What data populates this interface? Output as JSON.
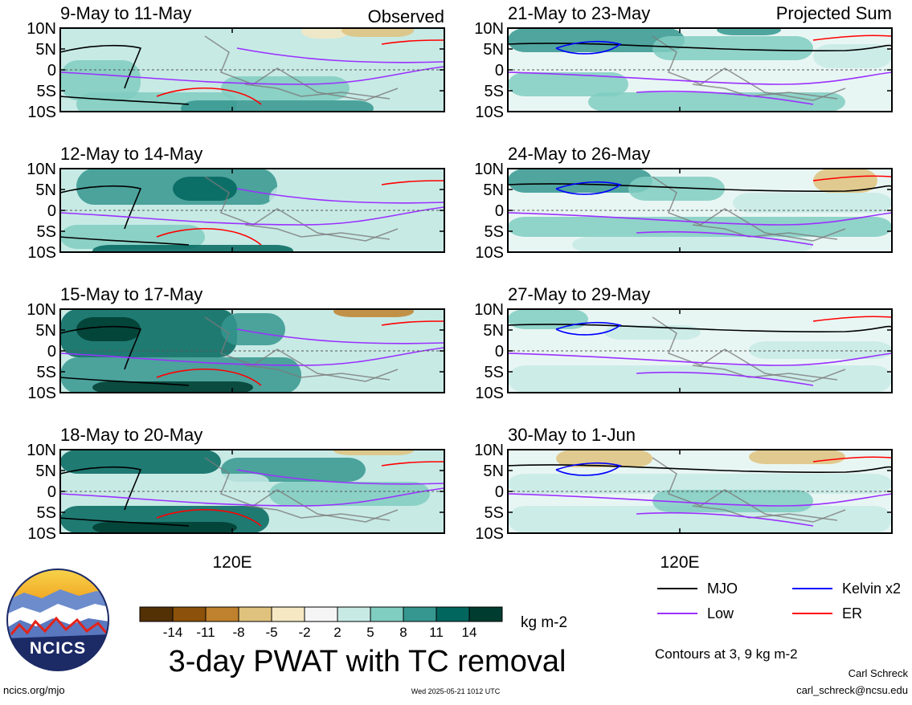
{
  "chart_data": {
    "type": "heatmap",
    "title": "3-day PWAT with TC removal",
    "units": "kg m-2",
    "contour_note": "Contours at 3, 9 kg m-2",
    "column_headers": [
      "Observed",
      "Projected Sum"
    ],
    "y_ticks": [
      "10N",
      "5N",
      "0",
      "5S",
      "10S"
    ],
    "x_ticks": [
      "120E"
    ],
    "panels": [
      {
        "period": "9-May to 11-May",
        "column": "Observed"
      },
      {
        "period": "12-May to 14-May",
        "column": "Observed"
      },
      {
        "period": "15-May to 17-May",
        "column": "Observed"
      },
      {
        "period": "18-May to 20-May",
        "column": "Observed"
      },
      {
        "period": "21-May to 23-May",
        "column": "Projected Sum"
      },
      {
        "period": "24-May to 26-May",
        "column": "Projected Sum"
      },
      {
        "period": "27-May to 29-May",
        "column": "Projected Sum"
      },
      {
        "period": "30-May to 1-Jun",
        "column": "Projected Sum"
      }
    ],
    "colorbar": {
      "labels": [
        "-14",
        "-11",
        "-8",
        "-5",
        "-2",
        "2",
        "5",
        "8",
        "11",
        "14"
      ],
      "colors": [
        "#543005",
        "#8c510a",
        "#bf812d",
        "#dfc27d",
        "#f6e8c3",
        "#f5f5f5",
        "#c7eae5",
        "#80cdc1",
        "#35978f",
        "#01665e",
        "#003c30"
      ]
    },
    "legend": [
      {
        "label": "MJO",
        "color": "#000000"
      },
      {
        "label": "Kelvin x2",
        "color": "#0000ff"
      },
      {
        "label": "Low",
        "color": "#9b30ff"
      },
      {
        "label": "ER",
        "color": "#ff0000"
      }
    ]
  },
  "logo_text": "NCICS",
  "footer": {
    "url": "ncics.org/mjo",
    "timestamp": "Wed 2025-05-21 1012 UTC",
    "author": "Carl Schreck",
    "email": "carl_schreck@ncsu.edu"
  }
}
